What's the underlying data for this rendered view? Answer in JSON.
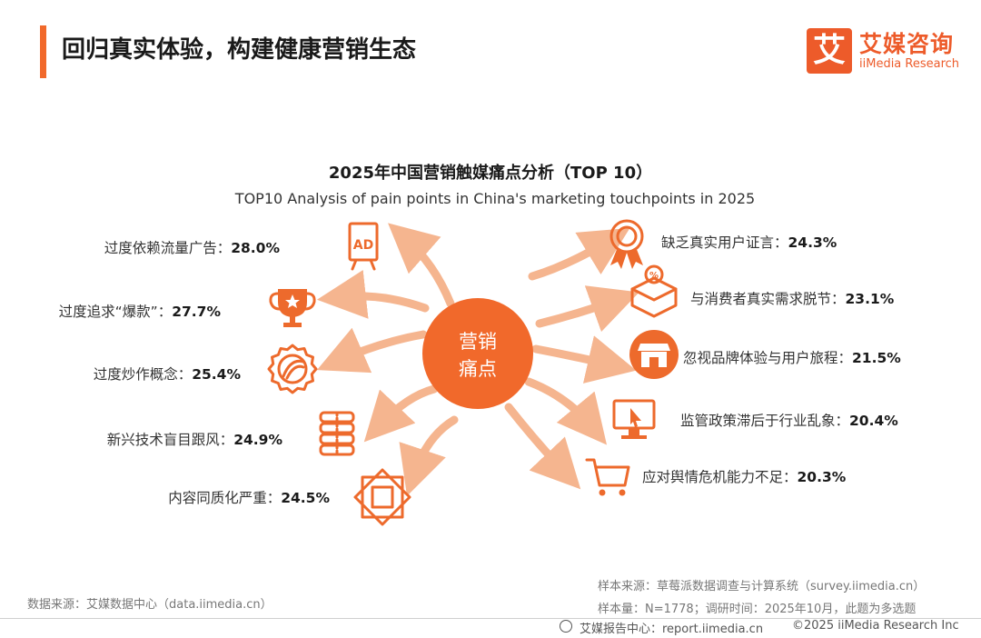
{
  "header": {
    "title": "回归真实体验，构建健康营销生态",
    "logo_mark": "艾",
    "logo_cn": "艾媒咨询",
    "logo_en": "iiMedia Research"
  },
  "chart_data": {
    "type": "radial-label",
    "title": "2025年中国营销触媒痛点分析（TOP 10）",
    "subtitle": "TOP10 Analysis of pain points in China's marketing touchpoints in 2025",
    "center_label": [
      "营销",
      "痛点"
    ],
    "unit": "%",
    "items": [
      {
        "label": "过度依赖流量广告",
        "value": 28.0,
        "icon": "ad-billboard-icon"
      },
      {
        "label": "过度追求“爆款”",
        "value": 27.7,
        "icon": "trophy-icon"
      },
      {
        "label": "过度炒作概念",
        "value": 25.4,
        "icon": "badge-seal-icon"
      },
      {
        "label": "新兴技术盲目跟风",
        "value": 24.9,
        "icon": "tech-stack-icon"
      },
      {
        "label": "内容同质化严重",
        "value": 24.5,
        "icon": "diamond-pattern-icon"
      },
      {
        "label": "缺乏真实用户证言",
        "value": 24.3,
        "icon": "award-ribbon-icon"
      },
      {
        "label": "与消费者真实需求脱节",
        "value": 23.1,
        "icon": "discount-box-icon"
      },
      {
        "label": "忽视品牌体验与用户旅程",
        "value": 21.5,
        "icon": "storefront-icon"
      },
      {
        "label": "监管政策滞后于行业乱象",
        "value": 20.4,
        "icon": "monitor-cursor-icon"
      },
      {
        "label": "应对舆情危机能力不足",
        "value": 20.3,
        "icon": "shopping-cart-icon"
      }
    ],
    "accent_color": "#f1692b",
    "icon_color": "#ed6a2c",
    "arrow_color": "#f5b58f"
  },
  "footer": {
    "data_source": "数据来源：艾媒数据中心（data.iimedia.cn）",
    "sample_source": "样本来源：草莓派数据调查与计算系统（survey.iimedia.cn）",
    "sample_size": "样本量：N=1778；调研时间：2025年10月，此题为多选题",
    "report_center": "艾媒报告中心：report.iimedia.cn",
    "copyright": "©2025  iiMedia Research  Inc"
  }
}
